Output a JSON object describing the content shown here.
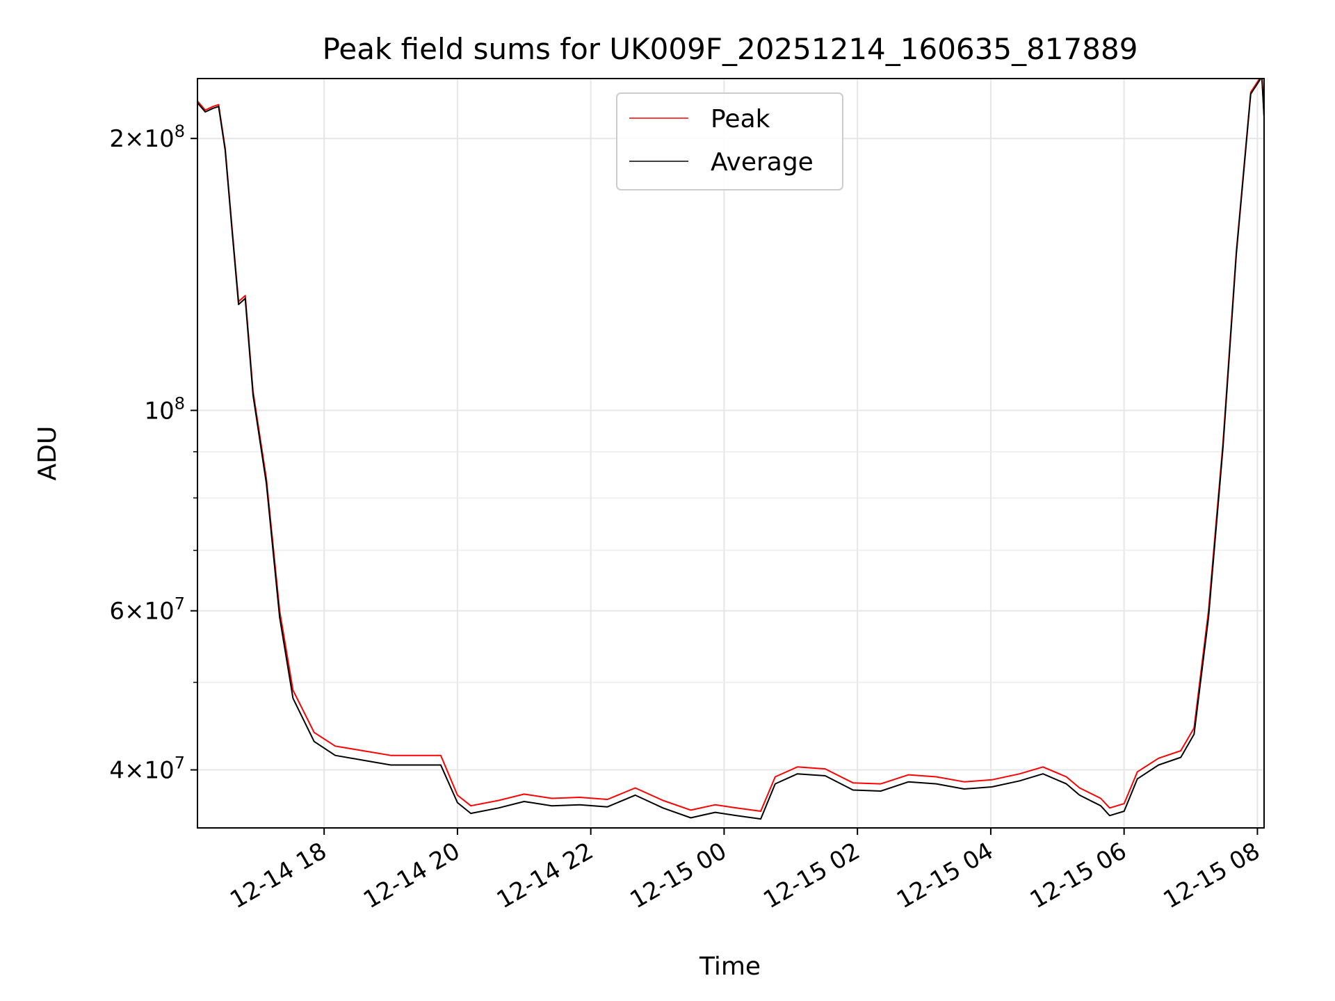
{
  "chart_data": {
    "type": "line",
    "title": "Peak field sums for UK009F_20251214_160635_817889",
    "xlabel": "Time",
    "ylabel": "ADU",
    "y_scale": "log",
    "xlim": [
      "2025-12-14 16:06",
      "2025-12-15 08:06"
    ],
    "ylim": [
      34500000,
      233000000
    ],
    "x_ticks": [
      {
        "value": "2025-12-14 18:00",
        "label": "12-14 18"
      },
      {
        "value": "2025-12-14 20:00",
        "label": "12-14 20"
      },
      {
        "value": "2025-12-14 22:00",
        "label": "12-14 22"
      },
      {
        "value": "2025-12-15 00:00",
        "label": "12-15 00"
      },
      {
        "value": "2025-12-15 02:00",
        "label": "12-15 02"
      },
      {
        "value": "2025-12-15 04:00",
        "label": "12-15 04"
      },
      {
        "value": "2025-12-15 06:00",
        "label": "12-15 06"
      },
      {
        "value": "2025-12-15 08:00",
        "label": "12-15 08"
      }
    ],
    "y_major_ticks": [
      {
        "value": 40000000,
        "base": "4×10",
        "exp": "7"
      },
      {
        "value": 60000000,
        "base": "6×10",
        "exp": "7"
      },
      {
        "value": 100000000,
        "base": "10",
        "exp": "8"
      },
      {
        "value": 200000000,
        "base": "2×10",
        "exp": "8"
      }
    ],
    "y_minor_ticks": [
      50000000,
      70000000,
      80000000,
      90000000
    ],
    "grid": true,
    "legend_position": "upper-center",
    "series": [
      {
        "name": "Peak",
        "color": "#ff0000",
        "points": [
          [
            "2025-12-14 16:06",
            220000000
          ],
          [
            "2025-12-14 16:13",
            215000000
          ],
          [
            "2025-12-14 16:20",
            217000000
          ],
          [
            "2025-12-14 16:25",
            218000000
          ],
          [
            "2025-12-14 16:31",
            195000000
          ],
          [
            "2025-12-14 16:37",
            160000000
          ],
          [
            "2025-12-14 16:43",
            132000000
          ],
          [
            "2025-12-14 16:49",
            134000000
          ],
          [
            "2025-12-14 16:56",
            105000000
          ],
          [
            "2025-12-14 17:08",
            84000000
          ],
          [
            "2025-12-14 17:20",
            60000000
          ],
          [
            "2025-12-14 17:32",
            49000000
          ],
          [
            "2025-12-14 17:51",
            44000000
          ],
          [
            "2025-12-14 18:10",
            42500000
          ],
          [
            "2025-12-14 18:35",
            42000000
          ],
          [
            "2025-12-14 19:00",
            41500000
          ],
          [
            "2025-12-14 19:25",
            41500000
          ],
          [
            "2025-12-14 19:45",
            41500000
          ],
          [
            "2025-12-14 20:00",
            37500000
          ],
          [
            "2025-12-14 20:12",
            36500000
          ],
          [
            "2025-12-14 20:37",
            37000000
          ],
          [
            "2025-12-14 21:00",
            37600000
          ],
          [
            "2025-12-14 21:25",
            37200000
          ],
          [
            "2025-12-14 21:50",
            37300000
          ],
          [
            "2025-12-14 22:15",
            37100000
          ],
          [
            "2025-12-14 22:40",
            38200000
          ],
          [
            "2025-12-14 23:05",
            37000000
          ],
          [
            "2025-12-14 23:30",
            36100000
          ],
          [
            "2025-12-14 23:52",
            36600000
          ],
          [
            "2025-12-15 00:11",
            36300000
          ],
          [
            "2025-12-15 00:33",
            36000000
          ],
          [
            "2025-12-15 00:46",
            39300000
          ],
          [
            "2025-12-15 01:06",
            40300000
          ],
          [
            "2025-12-15 01:31",
            40100000
          ],
          [
            "2025-12-15 01:56",
            38700000
          ],
          [
            "2025-12-15 02:21",
            38600000
          ],
          [
            "2025-12-15 02:46",
            39500000
          ],
          [
            "2025-12-15 03:11",
            39300000
          ],
          [
            "2025-12-15 03:36",
            38800000
          ],
          [
            "2025-12-15 04:01",
            39000000
          ],
          [
            "2025-12-15 04:26",
            39600000
          ],
          [
            "2025-12-15 04:47",
            40300000
          ],
          [
            "2025-12-15 05:08",
            39300000
          ],
          [
            "2025-12-15 05:20",
            38200000
          ],
          [
            "2025-12-15 05:39",
            37200000
          ],
          [
            "2025-12-15 05:47",
            36300000
          ],
          [
            "2025-12-15 06:00",
            36700000
          ],
          [
            "2025-12-15 06:12",
            39800000
          ],
          [
            "2025-12-15 06:31",
            41200000
          ],
          [
            "2025-12-15 06:51",
            42000000
          ],
          [
            "2025-12-15 07:03",
            44500000
          ],
          [
            "2025-12-15 07:16",
            60000000
          ],
          [
            "2025-12-15 07:29",
            92000000
          ],
          [
            "2025-12-15 07:41",
            150000000
          ],
          [
            "2025-12-15 07:54",
            225000000
          ],
          [
            "2025-12-15 08:04",
            235000000
          ],
          [
            "2025-12-15 08:06",
            212000000
          ]
        ]
      },
      {
        "name": "Average",
        "color": "#000000",
        "points": [
          [
            "2025-12-14 16:06",
            219000000
          ],
          [
            "2025-12-14 16:13",
            214000000
          ],
          [
            "2025-12-14 16:20",
            216000000
          ],
          [
            "2025-12-14 16:25",
            217000000
          ],
          [
            "2025-12-14 16:31",
            194000000
          ],
          [
            "2025-12-14 16:37",
            159000000
          ],
          [
            "2025-12-14 16:43",
            131000000
          ],
          [
            "2025-12-14 16:49",
            133000000
          ],
          [
            "2025-12-14 16:56",
            104000000
          ],
          [
            "2025-12-14 17:08",
            83000000
          ],
          [
            "2025-12-14 17:20",
            59000000
          ],
          [
            "2025-12-14 17:32",
            48000000
          ],
          [
            "2025-12-14 17:51",
            43000000
          ],
          [
            "2025-12-14 18:10",
            41500000
          ],
          [
            "2025-12-14 18:35",
            41000000
          ],
          [
            "2025-12-14 19:00",
            40500000
          ],
          [
            "2025-12-14 19:25",
            40500000
          ],
          [
            "2025-12-14 19:45",
            40500000
          ],
          [
            "2025-12-14 20:00",
            36800000
          ],
          [
            "2025-12-14 20:12",
            35800000
          ],
          [
            "2025-12-14 20:37",
            36300000
          ],
          [
            "2025-12-14 21:00",
            36900000
          ],
          [
            "2025-12-14 21:25",
            36500000
          ],
          [
            "2025-12-14 21:50",
            36600000
          ],
          [
            "2025-12-14 22:15",
            36400000
          ],
          [
            "2025-12-14 22:40",
            37500000
          ],
          [
            "2025-12-14 23:05",
            36300000
          ],
          [
            "2025-12-14 23:30",
            35400000
          ],
          [
            "2025-12-14 23:52",
            35900000
          ],
          [
            "2025-12-15 00:11",
            35600000
          ],
          [
            "2025-12-15 00:33",
            35300000
          ],
          [
            "2025-12-15 00:46",
            38600000
          ],
          [
            "2025-12-15 01:06",
            39600000
          ],
          [
            "2025-12-15 01:31",
            39400000
          ],
          [
            "2025-12-15 01:56",
            38000000
          ],
          [
            "2025-12-15 02:21",
            37900000
          ],
          [
            "2025-12-15 02:46",
            38800000
          ],
          [
            "2025-12-15 03:11",
            38600000
          ],
          [
            "2025-12-15 03:36",
            38100000
          ],
          [
            "2025-12-15 04:01",
            38300000
          ],
          [
            "2025-12-15 04:26",
            38900000
          ],
          [
            "2025-12-15 04:47",
            39600000
          ],
          [
            "2025-12-15 05:08",
            38600000
          ],
          [
            "2025-12-15 05:20",
            37500000
          ],
          [
            "2025-12-15 05:39",
            36500000
          ],
          [
            "2025-12-15 05:47",
            35600000
          ],
          [
            "2025-12-15 06:00",
            36000000
          ],
          [
            "2025-12-15 06:12",
            39100000
          ],
          [
            "2025-12-15 06:31",
            40500000
          ],
          [
            "2025-12-15 06:51",
            41300000
          ],
          [
            "2025-12-15 07:03",
            43800000
          ],
          [
            "2025-12-15 07:16",
            59000000
          ],
          [
            "2025-12-15 07:29",
            91000000
          ],
          [
            "2025-12-15 07:41",
            149000000
          ],
          [
            "2025-12-15 07:54",
            224000000
          ],
          [
            "2025-12-15 08:04",
            234000000
          ],
          [
            "2025-12-15 08:06",
            211000000
          ]
        ]
      }
    ]
  }
}
